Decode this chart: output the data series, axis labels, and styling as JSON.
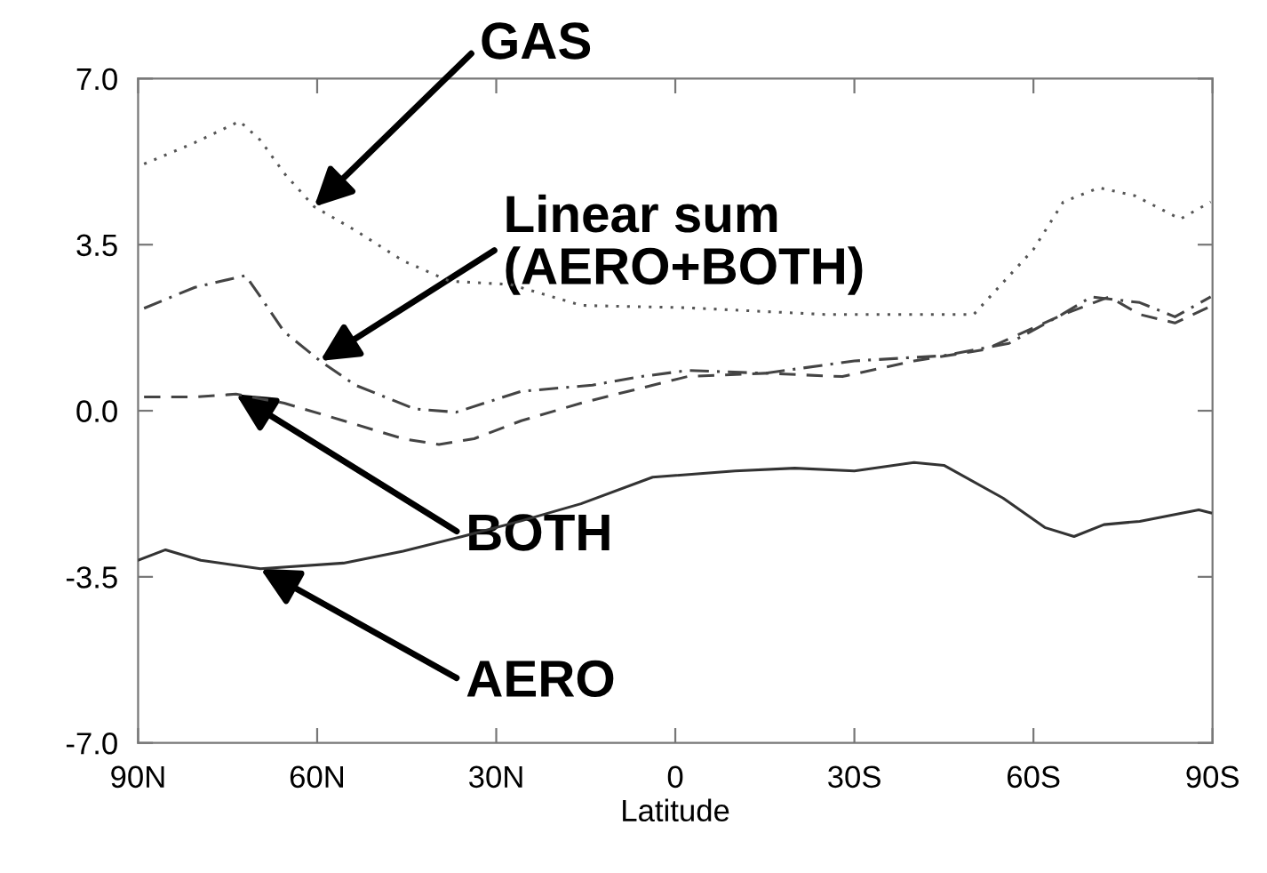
{
  "chart_data": {
    "type": "line",
    "xlabel": "Latitude",
    "xlim": [
      90,
      -90
    ],
    "xticks": [
      {
        "value": 90,
        "label": "90N"
      },
      {
        "value": 60,
        "label": "60N"
      },
      {
        "value": 30,
        "label": "30N"
      },
      0,
      {
        "value": -30,
        "label": "30S"
      },
      {
        "value": -60,
        "label": "60S"
      },
      {
        "value": -90,
        "label": "90S"
      }
    ],
    "ylim": [
      -7.0,
      7.0
    ],
    "yticks": [
      {
        "value": -7.0,
        "label": "-7.0"
      },
      {
        "value": -3.5,
        "label": "-3.5"
      },
      {
        "value": 0.0,
        "label": "0.0"
      },
      {
        "value": 3.5,
        "label": "3.5"
      },
      {
        "value": 7.0,
        "label": "7.0"
      }
    ],
    "grid": false,
    "legend": false,
    "series": [
      {
        "color": "#555555",
        "line_style": "dotted",
        "x": [
          89,
          80.5,
          73,
          69.5,
          65.5,
          60.5,
          53.6,
          45.6,
          37.8,
          27.6,
          15.7,
          -2,
          -25,
          -50,
          -60,
          -65,
          -71,
          -77,
          -84.6,
          -89.7
        ],
        "values": [
          5.2,
          5.65,
          6.1,
          5.7,
          5.0,
          4.3,
          3.8,
          3.16,
          2.73,
          2.66,
          2.22,
          2.17,
          2.03,
          2.03,
          3.4,
          4.4,
          4.7,
          4.53,
          4.04,
          4.4
        ]
      },
      {
        "color": "#444444",
        "line_style": "dashdot",
        "x": [
          89,
          80.5,
          72,
          69.5,
          65.5,
          59.5,
          53.6,
          43.7,
          36.7,
          25.8,
          13.9,
          5.8,
          -2.1,
          -15,
          -30,
          -44.9,
          -55.9,
          -64.8,
          -69.7,
          -77.8,
          -83.7,
          -89.7
        ],
        "values": [
          2.16,
          2.6,
          2.85,
          2.4,
          1.66,
          1.05,
          0.54,
          0.04,
          -0.03,
          0.41,
          0.54,
          0.72,
          0.85,
          0.79,
          1.05,
          1.16,
          1.42,
          2.03,
          2.4,
          2.28,
          1.98,
          2.4
        ]
      },
      {
        "color": "#444444",
        "line_style": "dashed",
        "x": [
          89,
          80.5,
          73.6,
          65.5,
          55.6,
          45.6,
          39.6,
          33.7,
          25.8,
          15.8,
          9.8,
          -2,
          -15,
          -28,
          -40,
          -51.9,
          -65,
          -72.7,
          -77.8,
          -83.7,
          -89.7
        ],
        "values": [
          0.29,
          0.29,
          0.35,
          0.16,
          -0.21,
          -0.59,
          -0.71,
          -0.59,
          -0.21,
          0.16,
          0.35,
          0.72,
          0.79,
          0.72,
          1.05,
          1.29,
          2.03,
          2.4,
          2.03,
          1.85,
          2.2
        ]
      },
      {
        "color": "#333333",
        "line_style": "solid",
        "x": [
          90,
          85.4,
          79.5,
          69.5,
          55.6,
          45.6,
          35.7,
          25.8,
          15.8,
          3.8,
          -10,
          -20,
          -30,
          -40,
          -45,
          -54.9,
          -61.9,
          -66.8,
          -71.8,
          -77.8,
          -87.7,
          -89.7
        ],
        "values": [
          -3.15,
          -2.93,
          -3.15,
          -3.33,
          -3.21,
          -2.96,
          -2.65,
          -2.32,
          -1.96,
          -1.4,
          -1.27,
          -1.21,
          -1.27,
          -1.09,
          -1.15,
          -1.84,
          -2.46,
          -2.65,
          -2.4,
          -2.33,
          -2.09,
          -2.15
        ]
      }
    ],
    "annotations": [
      {
        "text": "GAS",
        "x": 60.5,
        "y": 4.3
      },
      {
        "text": "Linear sum\n(AERO+BOTH)",
        "x": 59.5,
        "y": 1.05
      },
      {
        "text": "BOTH",
        "x": 73.6,
        "y": 0.35
      },
      {
        "text": "AERO",
        "x": 69.5,
        "y": -3.33
      }
    ]
  }
}
